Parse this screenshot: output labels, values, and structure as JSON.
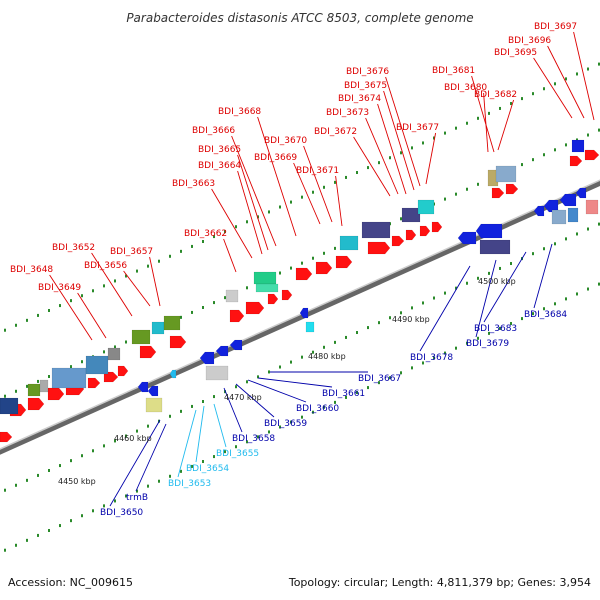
{
  "title": "Parabacteroides distasonis ATCC 8503, complete genome",
  "footer": {
    "accession": "Accession: NC_009615",
    "summary": "Topology: circular; Length: 4,811,379 bp; Genes: 3,954"
  },
  "colors": {
    "forward_label": "#dd0000",
    "reverse_label": "#0000aa",
    "rna_label": "#22bbee",
    "forward_gene": "#ff1111",
    "reverse_gene": "#1122dd",
    "backbone": "#888888",
    "tick": "#2a8a2a"
  },
  "scale": {
    "labels": [
      "4450 kbp",
      "4460 kbp",
      "4470 kbp",
      "4480 kbp",
      "4490 kbp",
      "4500 kbp"
    ]
  },
  "forward_labels": [
    "BDI_3648",
    "BDI_3649",
    "BDI_3652",
    "BDI_3656",
    "BDI_3657",
    "BDI_3662",
    "BDI_3663",
    "BDI_3664",
    "BDI_3665",
    "BDI_3666",
    "BDI_3668",
    "BDI_3669",
    "BDI_3670",
    "BDI_3671",
    "BDI_3672",
    "BDI_3673",
    "BDI_3674",
    "BDI_3675",
    "BDI_3676",
    "BDI_3677",
    "BDI_3680",
    "BDI_3681",
    "BDI_3682",
    "BDI_3695",
    "BDI_3696",
    "BDI_3697"
  ],
  "reverse_labels": [
    "BDI_3650",
    "trmB",
    "BDI_3653",
    "BDI_3654",
    "BDI_3655",
    "BDI_3658",
    "BDI_3659",
    "BDI_3660",
    "BDI_3661",
    "BDI_3667",
    "BDI_3678",
    "BDI_3679",
    "BDI_3683",
    "BDI_3684"
  ],
  "rna_labels": [
    "BDI_3653",
    "BDI_3654",
    "BDI_3655"
  ]
}
